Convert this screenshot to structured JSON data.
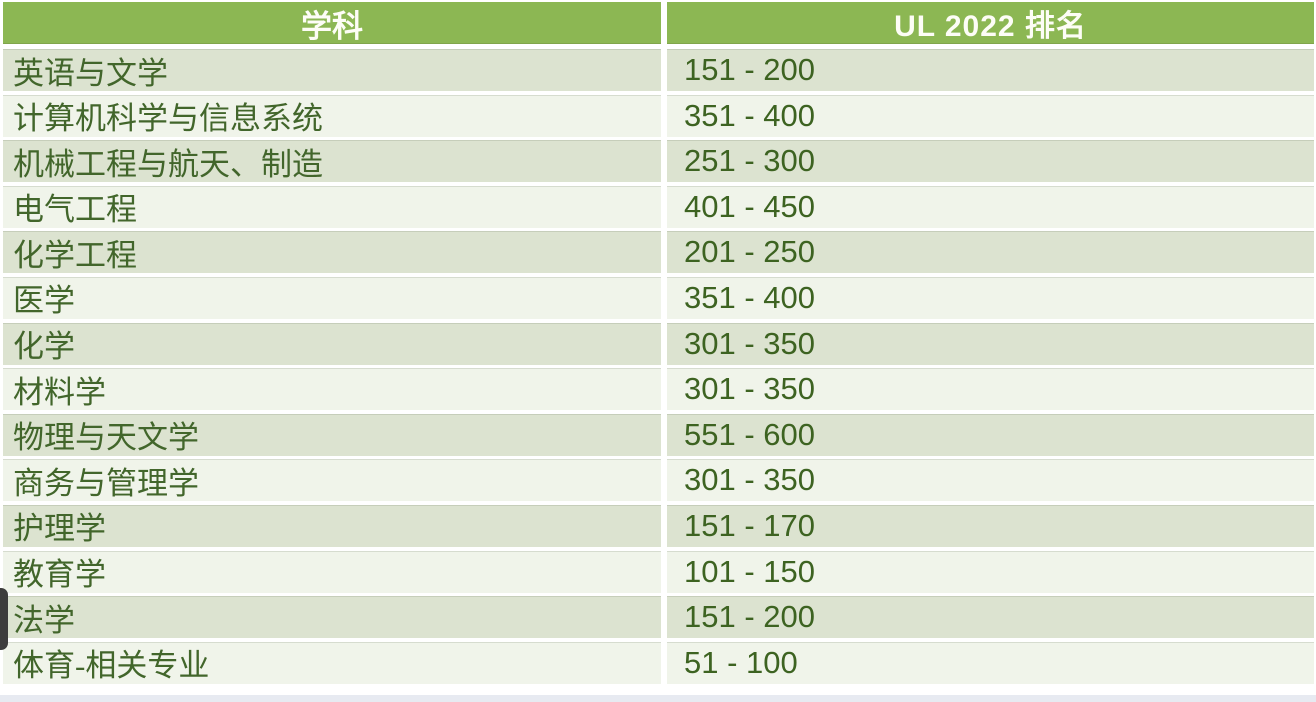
{
  "table": {
    "columns": [
      {
        "label": "学科"
      },
      {
        "label": "UL 2022 排名"
      }
    ],
    "rows": [
      {
        "subject": "英语与文学",
        "rank": "151 - 200"
      },
      {
        "subject": "计算机科学与信息系统",
        "rank": "351 - 400"
      },
      {
        "subject": "机械工程与航天、制造",
        "rank": "251 - 300"
      },
      {
        "subject": "电气工程",
        "rank": "401 - 450"
      },
      {
        "subject": "化学工程",
        "rank": "201 - 250"
      },
      {
        "subject": "医学",
        "rank": "351 - 400"
      },
      {
        "subject": "化学",
        "rank": "301 - 350"
      },
      {
        "subject": "材料学",
        "rank": "301 - 350"
      },
      {
        "subject": "物理与天文学",
        "rank": "551 - 600"
      },
      {
        "subject": "商务与管理学",
        "rank": "301 - 350"
      },
      {
        "subject": "护理学",
        "rank": "151 - 170"
      },
      {
        "subject": "教育学",
        "rank": "101 - 150"
      },
      {
        "subject": "法学",
        "rank": "151 - 200"
      },
      {
        "subject": "体育-相关专业",
        "rank": "51 - 100"
      }
    ]
  },
  "colors": {
    "header_bg": "#8cb753",
    "header_text": "#fdfdf6",
    "odd_row_bg": "#dce3d0",
    "even_row_bg": "#f0f4ea",
    "subject_text": "#42662b",
    "rank_text": "#3d6321",
    "handle": "#3d3d3d",
    "strip": "#e7eaf1",
    "page_bg": "#ffffff"
  }
}
